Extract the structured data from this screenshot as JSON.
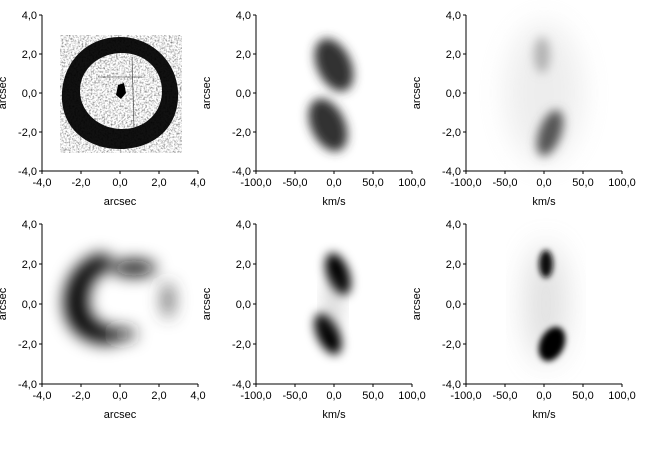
{
  "chart_data": [
    {
      "type": "heatmap",
      "content": "sky image (thresholded)",
      "xlabel": "arcsec",
      "ylabel": "arcsec",
      "xlim": [
        -4.0,
        4.0
      ],
      "ylim": [
        -4.0,
        4.0
      ],
      "xticks": [
        "-4,0",
        "-2,0",
        "0,0",
        "2,0",
        "4,0"
      ],
      "yticks": [
        "-4,0",
        "-2,0",
        "0,0",
        "2,0",
        "4,0"
      ],
      "colors": {
        "low": "#ffffff",
        "high": "#000000"
      }
    },
    {
      "type": "heatmap",
      "content": "position-velocity diagram",
      "xlabel": "km/s",
      "ylabel": "arcsec",
      "xlim": [
        -100.0,
        100.0
      ],
      "ylim": [
        -4.0,
        4.0
      ],
      "xticks": [
        "-100,0",
        "-50,0",
        "0,0",
        "50,0",
        "100,0"
      ],
      "yticks": [
        "-4,0",
        "-2,0",
        "0,0",
        "2,0",
        "4,0"
      ],
      "colors": {
        "low": "#ffffff",
        "high": "#000000"
      }
    },
    {
      "type": "heatmap",
      "content": "position-velocity diagram",
      "xlabel": "km/s",
      "ylabel": "arcsec",
      "xlim": [
        -100.0,
        100.0
      ],
      "ylim": [
        -4.0,
        4.0
      ],
      "xticks": [
        "-100,0",
        "-50,0",
        "0,0",
        "50,0",
        "100,0"
      ],
      "yticks": [
        "-4,0",
        "-2,0",
        "0,0",
        "2,0",
        "4,0"
      ],
      "colors": {
        "low": "#ffffff",
        "high": "#000000"
      }
    },
    {
      "type": "heatmap",
      "content": "model sky image",
      "xlabel": "arcsec",
      "ylabel": "arcsec",
      "xlim": [
        -4.0,
        4.0
      ],
      "ylim": [
        -4.0,
        4.0
      ],
      "xticks": [
        "-4,0",
        "-2,0",
        "0,0",
        "2,0",
        "4,0"
      ],
      "yticks": [
        "-4,0",
        "-2,0",
        "0,0",
        "2,0",
        "4,0"
      ],
      "colors": {
        "low": "#ffffff",
        "high": "#000000"
      }
    },
    {
      "type": "heatmap",
      "content": "model position-velocity diagram",
      "xlabel": "km/s",
      "ylabel": "arcsec",
      "xlim": [
        -100.0,
        100.0
      ],
      "ylim": [
        -4.0,
        4.0
      ],
      "xticks": [
        "-100,0",
        "-50,0",
        "0,0",
        "50,0",
        "100,0"
      ],
      "yticks": [
        "-4,0",
        "-2,0",
        "0,0",
        "2,0",
        "4,0"
      ],
      "colors": {
        "low": "#ffffff",
        "high": "#000000"
      }
    },
    {
      "type": "heatmap",
      "content": "model position-velocity diagram",
      "xlabel": "km/s",
      "ylabel": "arcsec",
      "xlim": [
        -100.0,
        100.0
      ],
      "ylim": [
        -4.0,
        4.0
      ],
      "xticks": [
        "-100,0",
        "-50,0",
        "0,0",
        "50,0",
        "100,0"
      ],
      "yticks": [
        "-4,0",
        "-2,0",
        "0,0",
        "2,0",
        "4,0"
      ],
      "colors": {
        "low": "#ffffff",
        "high": "#000000"
      }
    }
  ]
}
